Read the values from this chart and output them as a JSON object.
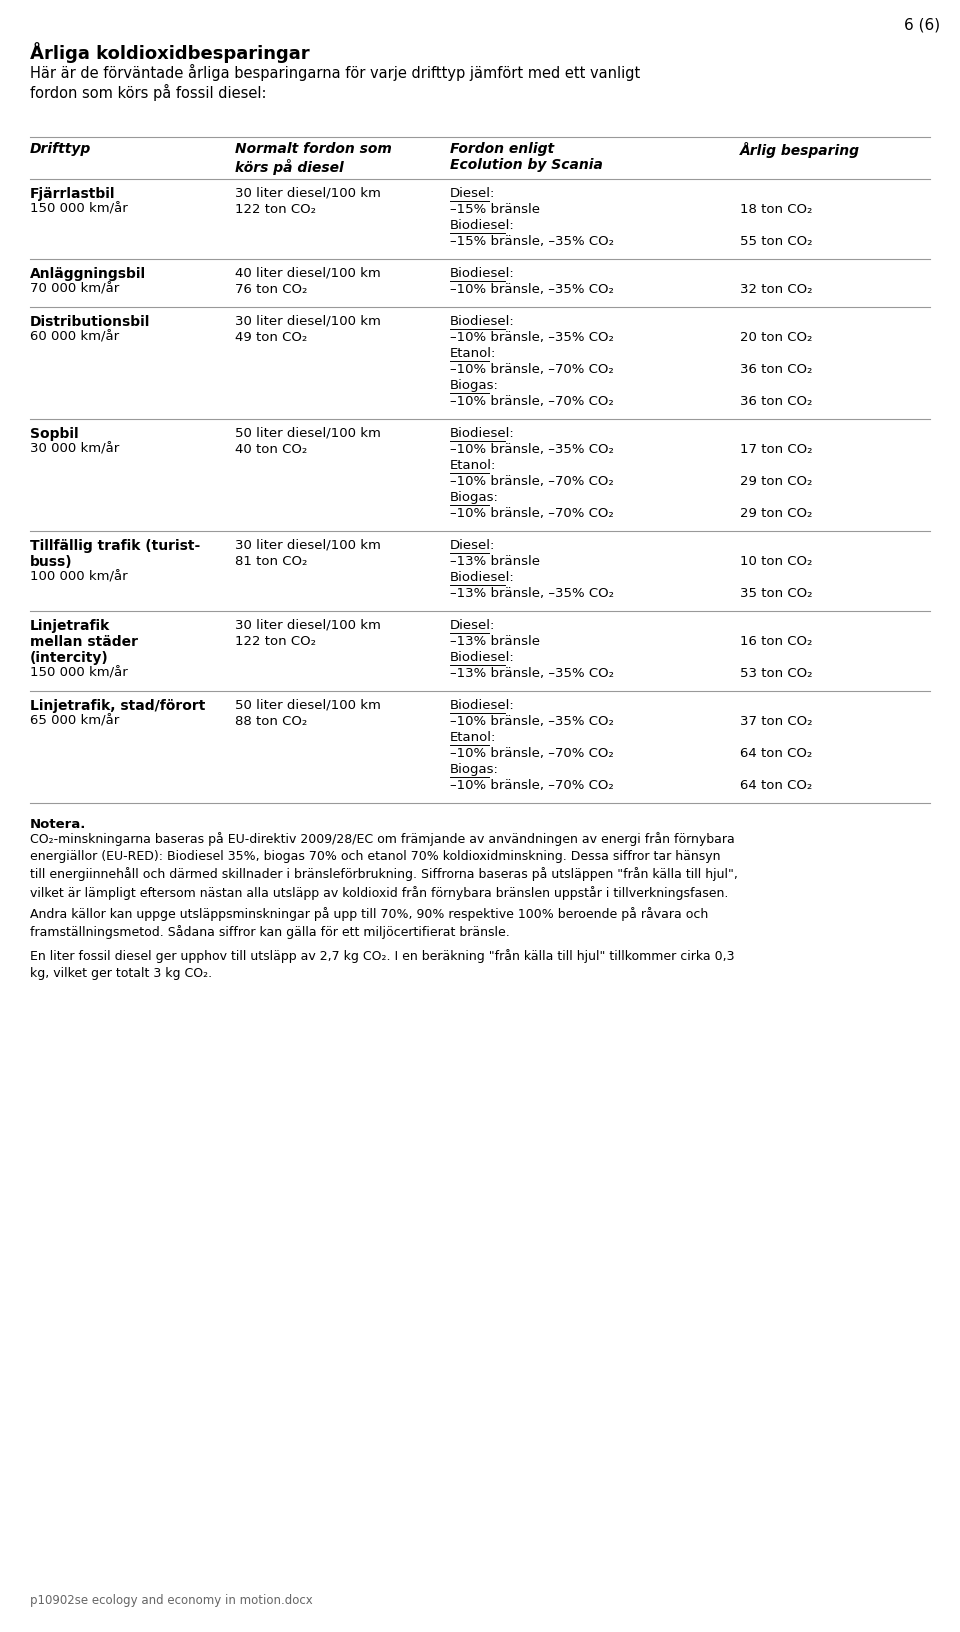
{
  "page_number": "6 (6)",
  "title": "Årliga koldioxidbesparingar",
  "subtitle": "Här är de förväntade årliga besparingarna för varje drifttyp jämfört med ett vanligt\nfordon som körs på fossil diesel:",
  "col_headers": [
    "Drifttyp",
    "Normalt fordon som\nkörs på diesel",
    "Fordon enligt\nEcolution by Scania",
    "Årlig besparing"
  ],
  "rows": [
    {
      "drifttyp_bold": "Fjärrlastbil",
      "drifttyp_sub": "150 000 km/år",
      "normal_line1": "30 liter diesel/100 km",
      "normal_line2": "122 ton CO₂",
      "ecolution": [
        {
          "label": "Diesel:",
          "lines": [
            "–15% bränsle"
          ],
          "savings": [
            "18 ton CO₂"
          ]
        },
        {
          "label": "Biodiesel:",
          "lines": [
            "–15% bränsle, –35% CO₂"
          ],
          "savings": [
            "55 ton CO₂"
          ]
        }
      ]
    },
    {
      "drifttyp_bold": "Anläggningsbil",
      "drifttyp_sub": "70 000 km/år",
      "normal_line1": "40 liter diesel/100 km",
      "normal_line2": "76 ton CO₂",
      "ecolution": [
        {
          "label": "Biodiesel:",
          "lines": [
            "–10% bränsle, –35% CO₂"
          ],
          "savings": [
            "32 ton CO₂"
          ]
        }
      ]
    },
    {
      "drifttyp_bold": "Distributionsbil",
      "drifttyp_sub": "60 000 km/år",
      "normal_line1": "30 liter diesel/100 km",
      "normal_line2": "49 ton CO₂",
      "ecolution": [
        {
          "label": "Biodiesel:",
          "lines": [
            "–10% bränsle, –35% CO₂"
          ],
          "savings": [
            "20 ton CO₂"
          ]
        },
        {
          "label": "Etanol:",
          "lines": [
            "–10% bränsle, –70% CO₂"
          ],
          "savings": [
            "36 ton CO₂"
          ]
        },
        {
          "label": "Biogas:",
          "lines": [
            "–10% bränsle, –70% CO₂"
          ],
          "savings": [
            "36 ton CO₂"
          ]
        }
      ]
    },
    {
      "drifttyp_bold": "Sopbil",
      "drifttyp_sub": "30 000 km/år",
      "normal_line1": "50 liter diesel/100 km",
      "normal_line2": "40 ton CO₂",
      "ecolution": [
        {
          "label": "Biodiesel:",
          "lines": [
            "–10% bränsle, –35% CO₂"
          ],
          "savings": [
            "17 ton CO₂"
          ]
        },
        {
          "label": "Etanol:",
          "lines": [
            "–10% bränsle, –70% CO₂"
          ],
          "savings": [
            "29 ton CO₂"
          ]
        },
        {
          "label": "Biogas:",
          "lines": [
            "–10% bränsle, –70% CO₂"
          ],
          "savings": [
            "29 ton CO₂"
          ]
        }
      ]
    },
    {
      "drifttyp_bold": "Tillfällig trafik (turist-\nbuss)",
      "drifttyp_sub": "100 000 km/år",
      "normal_line1": "30 liter diesel/100 km",
      "normal_line2": "81 ton CO₂",
      "ecolution": [
        {
          "label": "Diesel:",
          "lines": [
            "–13% bränsle"
          ],
          "savings": [
            "10 ton CO₂"
          ]
        },
        {
          "label": "Biodiesel:",
          "lines": [
            "–13% bränsle, –35% CO₂"
          ],
          "savings": [
            "35 ton CO₂"
          ]
        }
      ]
    },
    {
      "drifttyp_bold": "Linjetrafik\nmellan städer\n(intercity)",
      "drifttyp_sub": "150 000 km/år",
      "normal_line1": "30 liter diesel/100 km",
      "normal_line2": "122 ton CO₂",
      "ecolution": [
        {
          "label": "Diesel:",
          "lines": [
            "–13% bränsle"
          ],
          "savings": [
            "16 ton CO₂"
          ]
        },
        {
          "label": "Biodiesel:",
          "lines": [
            "–13% bränsle, –35% CO₂"
          ],
          "savings": [
            "53 ton CO₂"
          ]
        }
      ]
    },
    {
      "drifttyp_bold": "Linjetrafik, stad/förort",
      "drifttyp_sub": "65 000 km/år",
      "normal_line1": "50 liter diesel/100 km",
      "normal_line2": "88 ton CO₂",
      "ecolution": [
        {
          "label": "Biodiesel:",
          "lines": [
            "–10% bränsle, –35% CO₂"
          ],
          "savings": [
            "37 ton CO₂"
          ]
        },
        {
          "label": "Etanol:",
          "lines": [
            "–10% bränsle, –70% CO₂"
          ],
          "savings": [
            "64 ton CO₂"
          ]
        },
        {
          "label": "Biogas:",
          "lines": [
            "–10% bränsle, –70% CO₂"
          ],
          "savings": [
            "64 ton CO₂"
          ]
        }
      ]
    }
  ],
  "note_title": "Notera.",
  "note_body": "CO₂-minskningarna baseras på EU-direktiv 2009/28/EC om främjande av användningen av energi från förnybara\nenergiällor (EU-RED): Biodiesel 35%, biogas 70% och etanol 70% koldioxidminskning. Dessa siffror tar hänsyn\ntill energiinnehåll och därmed skillnader i bränsleförbrukning. Siffrorna baseras på utsläppen \"från källa till hjul\",\nvilket är lämpligt eftersom nästan alla utsläpp av koldioxid från förnybara bränslen uppstår i tillverkningsfasen.",
  "note2": "Andra källor kan uppge utsläppsminskningar på upp till 70%, 90% respektive 100% beroende på råvara och\nframställningsmetod. Sådana siffror kan gälla för ett miljöcertifierat bränsle.",
  "note3": "En liter fossil diesel ger upphov till utsläpp av 2,7 kg CO₂. I en beräkning \"från källa till hjul\" tillkommer cirka 0,3\nkg, vilket ger totalt 3 kg CO₂.",
  "footer": "p10902se ecology and economy in motion.docx",
  "bg_color": "#ffffff",
  "text_color": "#000000",
  "line_color": "#999999"
}
